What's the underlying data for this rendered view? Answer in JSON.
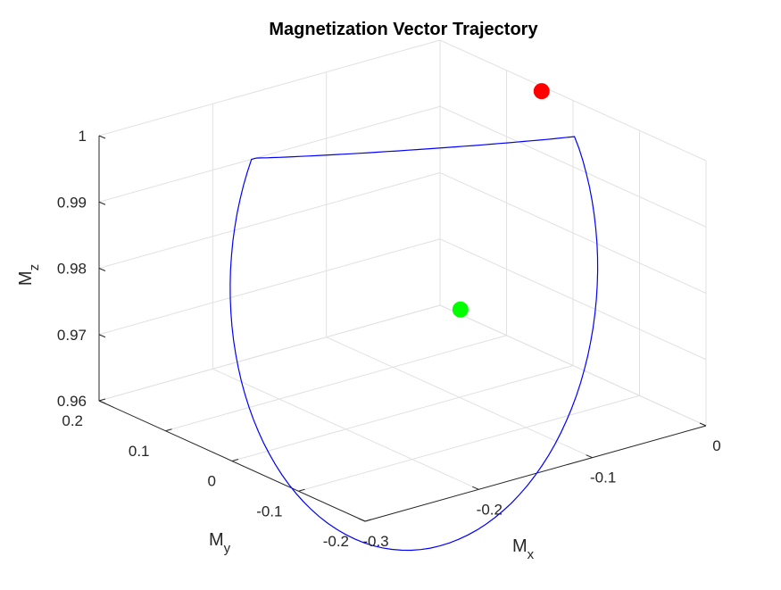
{
  "chart_data": {
    "type": "line3d",
    "title": "Magnetization Vector Trajectory",
    "xlabel": {
      "base": "M",
      "sub": "x"
    },
    "ylabel": {
      "base": "M",
      "sub": "y"
    },
    "zlabel": {
      "base": "M",
      "sub": "z"
    },
    "xlim": [
      -0.3,
      0
    ],
    "ylim": [
      -0.2,
      0.2
    ],
    "zlim": [
      0.96,
      1.0
    ],
    "xticks": [
      -0.3,
      -0.2,
      -0.1,
      0
    ],
    "xtick_labels": [
      "-0.3",
      "-0.2",
      "-0.1",
      "0"
    ],
    "yticks": [
      -0.2,
      -0.1,
      0,
      0.1,
      0.2
    ],
    "ytick_labels": [
      "-0.2",
      "-0.1",
      "0",
      "0.1",
      "0.2"
    ],
    "zticks": [
      0.96,
      0.97,
      0.98,
      0.99,
      1.0
    ],
    "ztick_labels": [
      "0.96",
      "0.97",
      "0.98",
      "0.99",
      "1"
    ],
    "grid": true,
    "trajectory": {
      "color": "#0000ff",
      "center": [
        -0.14,
        0.0,
        0.98
      ],
      "radius": 0.14,
      "start_angle_deg": 20,
      "sweep_deg": 360
    },
    "markers": [
      {
        "name": "start",
        "color": "#00ff00",
        "x": -0.126,
        "y": -0.046,
        "z": 0.9766
      },
      {
        "name": "end",
        "color": "#ff0000",
        "x": -0.006,
        "y": 0.037,
        "z": 1.0
      }
    ]
  }
}
